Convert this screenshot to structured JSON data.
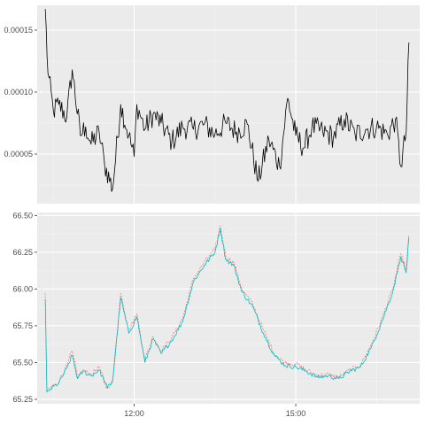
{
  "chart_data": [
    {
      "type": "line",
      "panel": "top",
      "title": "",
      "xlabel": "",
      "ylabel": "",
      "x_ticks": [],
      "y_ticks": [
        "0.00005",
        "0.00010",
        "0.00015"
      ],
      "ylim": [
        1e-05,
        0.00017
      ],
      "grid": true,
      "background": "#EBEBEB",
      "series": [
        {
          "color": "#000000",
          "x": [
            10.35,
            10.4,
            10.5,
            10.6,
            10.75,
            10.85,
            11.0,
            11.1,
            11.2,
            11.35,
            11.45,
            11.6,
            11.75,
            11.9,
            12.0,
            12.05,
            12.2,
            12.35,
            12.5,
            12.7,
            12.9,
            13.1,
            13.3,
            13.5,
            13.7,
            13.9,
            14.1,
            14.3,
            14.5,
            14.7,
            14.85,
            15.0,
            15.15,
            15.3,
            15.5,
            15.7,
            15.9,
            16.1,
            16.3,
            16.5,
            16.7,
            16.85,
            16.95,
            17.05,
            17.1
          ],
          "y": [
            0.000167,
            0.000115,
            8.5e-05,
            9e-05,
            8e-05,
            0.000118,
            6.5e-05,
            7.2e-05,
            5.8e-05,
            6.8e-05,
            4.2e-05,
            2.2e-05,
            9e-05,
            6.5e-05,
            4.8e-05,
            9e-05,
            7e-05,
            8.2e-05,
            7.5e-05,
            6e-05,
            7.2e-05,
            7e-05,
            7.4e-05,
            6.6e-05,
            7.5e-05,
            6.8e-05,
            7.4e-05,
            2.8e-05,
            6.2e-05,
            4e-05,
            9.5e-05,
            6.5e-05,
            5.5e-05,
            7.2e-05,
            6.8e-05,
            6.4e-05,
            7.8e-05,
            6.6e-05,
            7e-05,
            7.2e-05,
            6.6e-05,
            7.8e-05,
            4e-05,
            6.8e-05,
            0.00014
          ]
        }
      ]
    },
    {
      "type": "line",
      "panel": "bottom",
      "title": "",
      "xlabel": "",
      "ylabel": "",
      "x_ticks": [
        "12:00",
        "15:00"
      ],
      "x_tick_values": [
        12,
        15
      ],
      "xlim": [
        10.2,
        17.3
      ],
      "y_ticks": [
        "65.25",
        "65.50",
        "65.75",
        "66.00",
        "66.25",
        "66.50"
      ],
      "ylim": [
        65.22,
        66.52
      ],
      "grid": true,
      "background": "#EBEBEB",
      "series": [
        {
          "color": "#F8766D",
          "dashed": true,
          "x": [
            10.35,
            10.38,
            10.45,
            10.6,
            10.75,
            10.85,
            10.95,
            11.05,
            11.2,
            11.35,
            11.5,
            11.6,
            11.75,
            11.9,
            12.05,
            12.2,
            12.35,
            12.5,
            12.7,
            12.9,
            13.1,
            13.3,
            13.5,
            13.6,
            13.7,
            13.85,
            14.0,
            14.2,
            14.4,
            14.6,
            14.8,
            15.0,
            15.2,
            15.4,
            15.6,
            15.8,
            16.0,
            16.2,
            16.4,
            16.6,
            16.8,
            16.95,
            17.05,
            17.1
          ],
          "y": [
            65.97,
            65.31,
            65.33,
            65.37,
            65.48,
            65.58,
            65.4,
            65.45,
            65.42,
            65.47,
            65.32,
            65.38,
            65.97,
            65.72,
            65.83,
            65.52,
            65.68,
            65.58,
            65.67,
            65.8,
            66.07,
            66.18,
            66.27,
            66.43,
            66.22,
            66.18,
            66.0,
            65.9,
            65.72,
            65.56,
            65.5,
            65.49,
            65.45,
            65.41,
            65.42,
            65.4,
            65.45,
            65.48,
            65.62,
            65.8,
            66.0,
            66.24,
            66.13,
            66.37
          ]
        },
        {
          "color": "#00BFC4",
          "x": [
            10.35,
            10.38,
            10.45,
            10.6,
            10.75,
            10.85,
            10.95,
            11.05,
            11.2,
            11.35,
            11.5,
            11.6,
            11.75,
            11.9,
            12.05,
            12.2,
            12.35,
            12.5,
            12.7,
            12.9,
            13.1,
            13.3,
            13.5,
            13.6,
            13.7,
            13.85,
            14.0,
            14.2,
            14.4,
            14.6,
            14.8,
            15.0,
            15.2,
            15.4,
            15.6,
            15.8,
            16.0,
            16.2,
            16.4,
            16.6,
            16.8,
            16.95,
            17.05,
            17.1
          ],
          "y": [
            65.93,
            65.3,
            65.32,
            65.36,
            65.46,
            65.55,
            65.39,
            65.44,
            65.41,
            65.45,
            65.33,
            65.37,
            65.94,
            65.7,
            65.81,
            65.5,
            65.66,
            65.56,
            65.65,
            65.78,
            66.05,
            66.16,
            66.25,
            66.41,
            66.2,
            66.16,
            65.98,
            65.88,
            65.7,
            65.55,
            65.48,
            65.47,
            65.44,
            65.4,
            65.41,
            65.39,
            65.44,
            65.47,
            65.6,
            65.78,
            65.98,
            66.22,
            66.11,
            66.35
          ]
        }
      ]
    }
  ]
}
